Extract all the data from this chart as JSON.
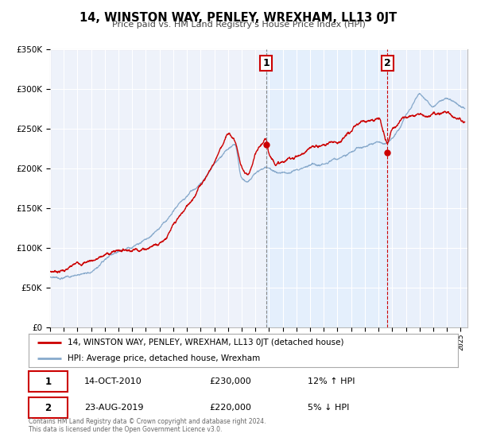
{
  "title": "14, WINSTON WAY, PENLEY, WREXHAM, LL13 0JT",
  "subtitle": "Price paid vs. HM Land Registry's House Price Index (HPI)",
  "legend_line1": "14, WINSTON WAY, PENLEY, WREXHAM, LL13 0JT (detached house)",
  "legend_line2": "HPI: Average price, detached house, Wrexham",
  "annotation1_label": "1",
  "annotation1_date": "14-OCT-2010",
  "annotation1_price": "£230,000",
  "annotation1_hpi": "12% ↑ HPI",
  "annotation2_label": "2",
  "annotation2_date": "23-AUG-2019",
  "annotation2_price": "£220,000",
  "annotation2_hpi": "5% ↓ HPI",
  "footnote1": "Contains HM Land Registry data © Crown copyright and database right 2024.",
  "footnote2": "This data is licensed under the Open Government Licence v3.0.",
  "red_color": "#cc0000",
  "blue_color": "#88aacc",
  "blue_fill_color": "#ddeeff",
  "background_color": "#eef2fa",
  "grid_color": "#ffffff",
  "ylim": [
    0,
    350000
  ],
  "xlim_start": 1995.0,
  "xlim_end": 2025.5,
  "sale1_x": 2010.79,
  "sale1_y": 230000,
  "sale2_x": 2019.65,
  "sale2_y": 220000,
  "vline1_x": 2010.79,
  "vline2_x": 2019.65,
  "hpi_knots_x": [
    1995,
    1996,
    1997,
    1998,
    1999,
    2000,
    2001,
    2002,
    2003,
    2004,
    2005,
    2006,
    2007,
    2008,
    2008.5,
    2009,
    2009.5,
    2010,
    2010.5,
    2011,
    2011.5,
    2012,
    2013,
    2014,
    2015,
    2016,
    2017,
    2018,
    2019,
    2019.5,
    2020,
    2020.5,
    2021,
    2021.5,
    2022,
    2022.5,
    2023,
    2023.5,
    2024,
    2024.5,
    2025.3
  ],
  "hpi_knots_y": [
    63000,
    65000,
    68000,
    72000,
    80000,
    90000,
    98000,
    105000,
    120000,
    140000,
    155000,
    170000,
    195000,
    215000,
    220000,
    175000,
    170000,
    180000,
    185000,
    185000,
    182000,
    182000,
    188000,
    195000,
    200000,
    207000,
    215000,
    220000,
    225000,
    222000,
    228000,
    240000,
    260000,
    275000,
    290000,
    285000,
    278000,
    282000,
    285000,
    280000,
    275000
  ],
  "red_knots_x": [
    1995,
    1996,
    1997,
    1998,
    1999,
    2000,
    2001,
    2002,
    2003,
    2004,
    2005,
    2006,
    2007,
    2007.5,
    2008,
    2008.5,
    2009,
    2009.5,
    2010,
    2010.79,
    2011,
    2011.5,
    2012,
    2013,
    2014,
    2015,
    2016,
    2017,
    2018,
    2018.5,
    2019,
    2019.65,
    2020,
    2020.5,
    2021,
    2021.5,
    2022,
    2022.5,
    2023,
    2023.5,
    2024,
    2024.5,
    2025.3
  ],
  "red_knots_y": [
    70000,
    73000,
    78000,
    84000,
    90000,
    96000,
    100000,
    105000,
    115000,
    135000,
    155000,
    185000,
    215000,
    235000,
    250000,
    242000,
    208000,
    195000,
    215000,
    230000,
    215000,
    205000,
    205000,
    212000,
    218000,
    222000,
    228000,
    238000,
    248000,
    252000,
    253000,
    220000,
    238000,
    248000,
    255000,
    260000,
    265000,
    262000,
    268000,
    265000,
    270000,
    265000,
    258000
  ]
}
